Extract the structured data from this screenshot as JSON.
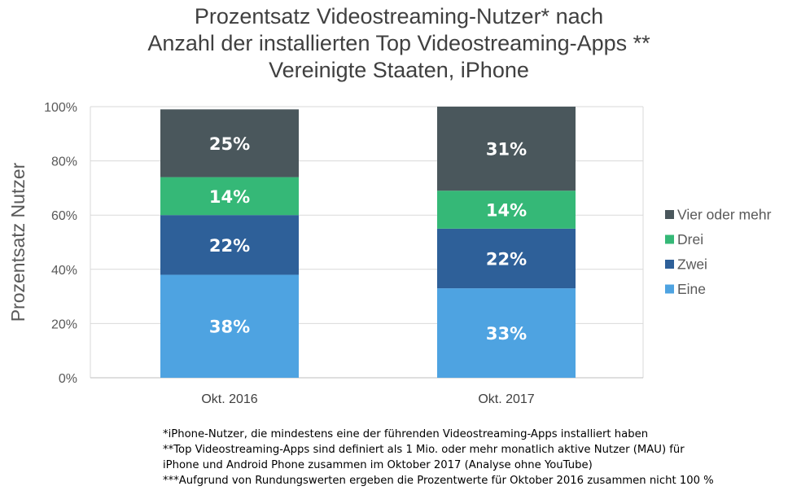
{
  "title_lines": [
    "Prozentsatz Videostreaming-Nutzer* nach",
    "Anzahl der installierten Top Videostreaming-Apps **",
    "Vereinigte Staaten, iPhone"
  ],
  "chart_data": {
    "type": "bar",
    "stacked": true,
    "categories": [
      "Okt. 2016",
      "Okt. 2017"
    ],
    "series": [
      {
        "name": "Eine",
        "values": [
          38,
          33
        ],
        "labels": [
          "38%",
          "33%"
        ],
        "color": "#4ea3e1"
      },
      {
        "name": "Zwei",
        "values": [
          22,
          22
        ],
        "labels": [
          "22%",
          "22%"
        ],
        "color": "#2e6099"
      },
      {
        "name": "Drei",
        "values": [
          14,
          14
        ],
        "labels": [
          "14%",
          "14%"
        ],
        "color": "#35b877"
      },
      {
        "name": "Vier oder mehr",
        "values": [
          25,
          31
        ],
        "labels": [
          "25%",
          "31%"
        ],
        "color": "#4a575c"
      }
    ],
    "ylabel": "Prozentsatz Nutzer",
    "ylim": [
      0,
      100
    ],
    "yticks": [
      "0%",
      "20%",
      "40%",
      "60%",
      "80%",
      "100%"
    ],
    "grid": true,
    "legend_position": "right"
  },
  "footnotes": [
    "*iPhone-Nutzer, die mindestens eine der führenden Videostreaming-Apps installiert haben",
    "**Top Videostreaming-Apps sind definiert als 1 Mio. oder mehr monatlich aktive Nutzer (MAU) für",
    "iPhone und Android Phone zusammen im Oktober 2017 (Analyse ohne YouTube)",
    "***Aufgrund von Rundungswerten ergeben die Prozentwerte für Oktober 2016 zusammen nicht 100 %"
  ]
}
